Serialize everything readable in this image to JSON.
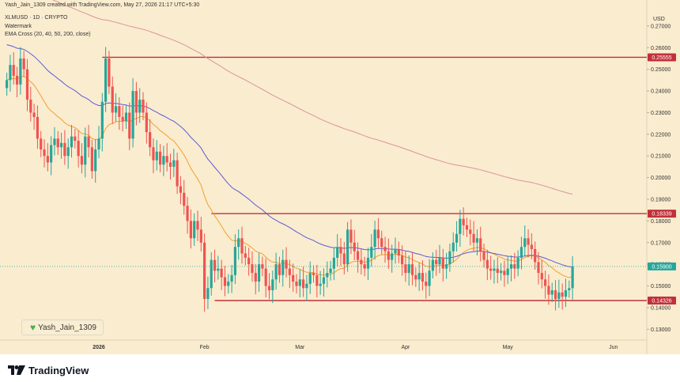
{
  "header": {
    "created_by": "Yash_Jain_1309 created with TradingView.com, May 27, 2026 21:17 UTC+5:30",
    "symbol": "XLMUSD · 1D · CRYPTO",
    "watermark_label": "Watermark",
    "indicator": "EMA Cross (20, 40, 50, 200, close)"
  },
  "author_box": {
    "text": "Yash_Jain_1309",
    "icon": "heart-icon"
  },
  "footer": {
    "brand": "TradingView",
    "icon": "tradingview-logo-icon"
  },
  "currency": "USD",
  "colors": {
    "background": "#faeccf",
    "up": "#26a69a",
    "down": "#ef5350",
    "ema_fast": "#f2a12c",
    "ema_slow": "#5b5bd6",
    "ema_long": "#d8959a",
    "level_line": "#c2303a",
    "price_tag_bg": "#26a69a"
  },
  "chart_data": {
    "type": "candlestick",
    "ylim": [
      0.125,
      0.282
    ],
    "y_ticks": [
      "0.27000",
      "0.26000",
      "0.25000",
      "0.24000",
      "0.23000",
      "0.22000",
      "0.21000",
      "0.20000",
      "0.19000",
      "0.18000",
      "0.17000",
      "0.16000",
      "0.15000",
      "0.14000",
      "0.13000"
    ],
    "x_ticks": [
      "2026",
      "Feb",
      "Mar",
      "Apr",
      "May",
      "Jun"
    ],
    "x_tick_days": [
      0,
      31,
      59,
      90,
      120,
      151
    ],
    "first_candle_day": -27,
    "levels": [
      {
        "label": "0.25555",
        "value": 0.25555,
        "start_day": 1
      },
      {
        "label": "0.18339",
        "value": 0.18339,
        "start_day": 33
      },
      {
        "label": "0.14326",
        "value": 0.14326,
        "start_day": 34
      }
    ],
    "current_price": {
      "label": "0.15900",
      "value": 0.159
    },
    "candles_close": [
      0.245,
      0.252,
      0.247,
      0.243,
      0.255,
      0.25,
      0.236,
      0.23,
      0.228,
      0.218,
      0.213,
      0.21,
      0.207,
      0.215,
      0.218,
      0.214,
      0.216,
      0.21,
      0.214,
      0.219,
      0.217,
      0.21,
      0.206,
      0.219,
      0.214,
      0.203,
      0.213,
      0.218,
      0.235,
      0.255,
      0.242,
      0.23,
      0.233,
      0.228,
      0.226,
      0.23,
      0.218,
      0.24,
      0.23,
      0.236,
      0.23,
      0.221,
      0.214,
      0.208,
      0.212,
      0.206,
      0.21,
      0.207,
      0.205,
      0.208,
      0.196,
      0.193,
      0.187,
      0.18,
      0.172,
      0.18,
      0.176,
      0.17,
      0.144,
      0.149,
      0.162,
      0.157,
      0.158,
      0.154,
      0.15,
      0.152,
      0.155,
      0.168,
      0.172,
      0.165,
      0.163,
      0.16,
      0.156,
      0.152,
      0.16,
      0.158,
      0.15,
      0.148,
      0.153,
      0.16,
      0.155,
      0.162,
      0.158,
      0.155,
      0.152,
      0.15,
      0.153,
      0.149,
      0.151,
      0.156,
      0.155,
      0.15,
      0.151,
      0.154,
      0.156,
      0.158,
      0.163,
      0.168,
      0.165,
      0.16,
      0.176,
      0.17,
      0.166,
      0.162,
      0.16,
      0.158,
      0.163,
      0.168,
      0.176,
      0.172,
      0.168,
      0.166,
      0.162,
      0.165,
      0.167,
      0.164,
      0.16,
      0.156,
      0.16,
      0.155,
      0.153,
      0.156,
      0.152,
      0.15,
      0.157,
      0.162,
      0.16,
      0.163,
      0.158,
      0.16,
      0.166,
      0.17,
      0.174,
      0.181,
      0.178,
      0.176,
      0.174,
      0.17,
      0.172,
      0.166,
      0.162,
      0.158,
      0.157,
      0.158,
      0.156,
      0.157,
      0.155,
      0.158,
      0.16,
      0.158,
      0.163,
      0.168,
      0.172,
      0.169,
      0.167,
      0.161,
      0.156,
      0.153,
      0.15,
      0.146,
      0.148,
      0.144,
      0.147,
      0.145,
      0.148,
      0.149,
      0.159
    ]
  }
}
